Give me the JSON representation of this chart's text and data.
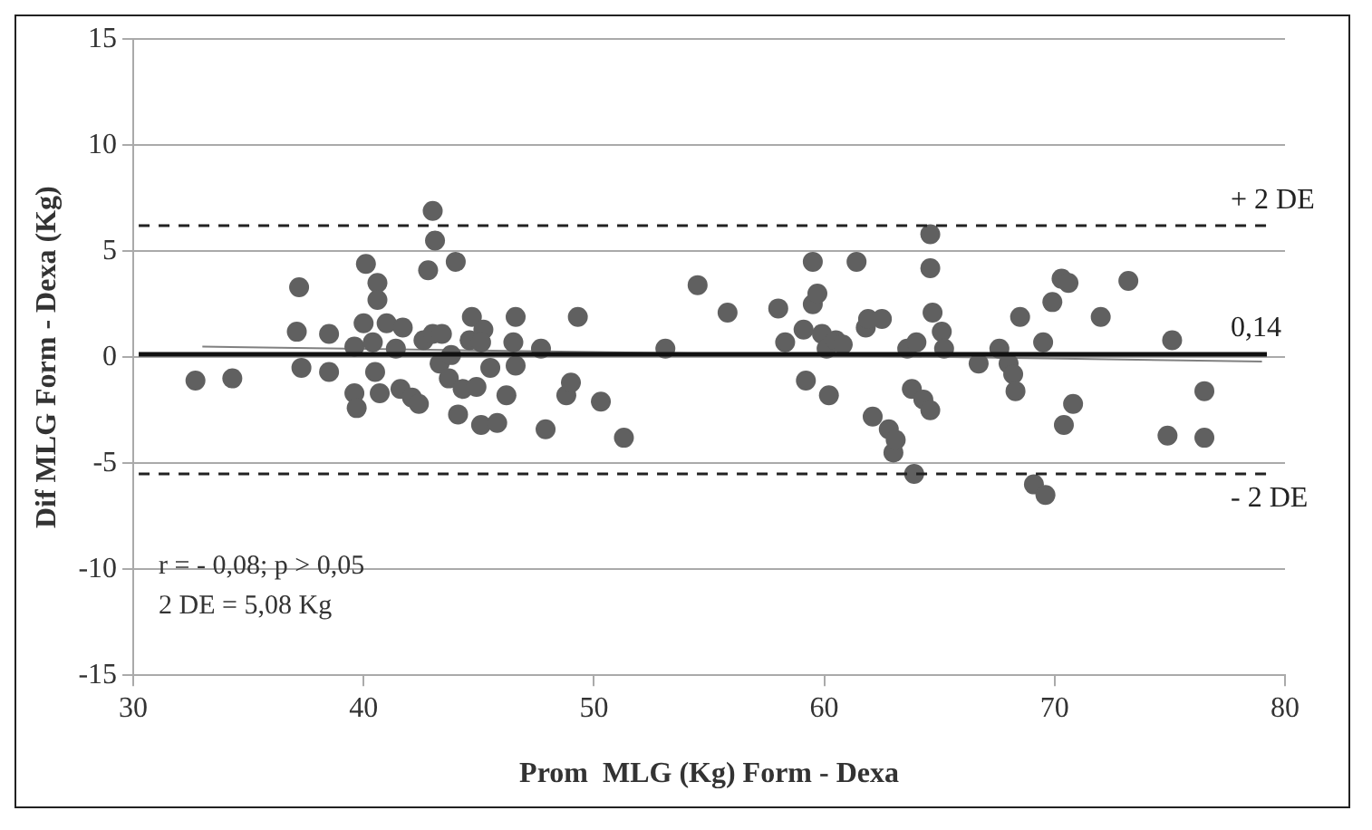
{
  "chart_data": {
    "type": "scatter",
    "xlabel": "Prom  MLG (Kg) Form - Dexa",
    "ylabel": "Dif MLG Form - Dexa (Kg)",
    "xlim": [
      30,
      80
    ],
    "xticks": [
      30,
      40,
      50,
      60,
      70,
      80
    ],
    "ylim": [
      -15,
      15
    ],
    "yticks": [
      -15,
      -10,
      -5,
      0,
      5,
      10,
      15
    ],
    "grid": "y",
    "series": [
      {
        "marker": "circle",
        "color": "#606060",
        "x": [
          32.7,
          34.3,
          37.2,
          37.1,
          37.3,
          38.5,
          38.5,
          39.6,
          39.6,
          39.7,
          40.1,
          40.6,
          40.6,
          40.0,
          40.4,
          40.5,
          40.7,
          41.0,
          41.4,
          41.6,
          41.7,
          42.1,
          42.4,
          42.6,
          42.8,
          43.0,
          43.1,
          43.0,
          43.3,
          43.4,
          43.7,
          44.0,
          43.8,
          44.1,
          44.3,
          44.6,
          44.7,
          44.9,
          45.1,
          45.2,
          45.5,
          45.1,
          45.8,
          46.2,
          46.5,
          46.6,
          46.6,
          47.7,
          47.9,
          48.8,
          49.0,
          49.3,
          50.3,
          51.3,
          53.1,
          54.5,
          55.8,
          58.0,
          58.3,
          59.1,
          59.2,
          59.5,
          59.5,
          59.7,
          59.9,
          60.1,
          60.2,
          60.5,
          60.8,
          61.4,
          61.8,
          61.9,
          62.1,
          62.5,
          62.8,
          63.0,
          63.1,
          63.6,
          63.8,
          64.0,
          63.9,
          64.3,
          64.6,
          64.6,
          64.6,
          64.7,
          65.1,
          65.2,
          66.7,
          67.6,
          68.0,
          68.2,
          68.3,
          68.5,
          69.1,
          69.6,
          69.5,
          69.9,
          70.3,
          70.6,
          70.4,
          70.8,
          72.0,
          73.2,
          74.9,
          75.1,
          76.5,
          76.5
        ],
        "values": [
          -1.1,
          -1.0,
          3.3,
          1.2,
          -0.5,
          1.1,
          -0.7,
          0.5,
          -1.7,
          -2.4,
          4.4,
          3.5,
          2.7,
          1.6,
          0.7,
          -0.7,
          -1.7,
          1.6,
          0.4,
          -1.5,
          1.4,
          -1.9,
          -2.2,
          0.8,
          4.1,
          6.9,
          5.5,
          1.1,
          -0.3,
          1.1,
          -1.0,
          4.5,
          0.1,
          -2.7,
          -1.5,
          0.8,
          1.9,
          -1.4,
          -3.2,
          1.3,
          -0.5,
          0.7,
          -3.1,
          -1.8,
          0.7,
          1.9,
          -0.4,
          0.4,
          -3.4,
          -1.8,
          -1.2,
          1.9,
          -2.1,
          -3.8,
          0.4,
          3.4,
          2.1,
          2.3,
          0.7,
          1.3,
          -1.1,
          4.5,
          2.5,
          3.0,
          1.1,
          0.4,
          -1.8,
          0.8,
          0.6,
          4.5,
          1.4,
          1.8,
          -2.8,
          1.8,
          -3.4,
          -4.5,
          -3.9,
          0.4,
          -1.5,
          0.7,
          -5.5,
          -2.0,
          -2.5,
          5.8,
          4.2,
          2.1,
          1.2,
          0.4,
          -0.3,
          0.4,
          -0.3,
          -0.8,
          -1.6,
          1.9,
          -6.0,
          -6.5,
          0.7,
          2.6,
          3.7,
          3.5,
          -3.2,
          -2.2,
          1.9,
          3.6,
          -3.7,
          0.8,
          -1.6,
          -3.8
        ]
      },
      {
        "type": "line",
        "color": "#808080",
        "x": [
          33,
          79
        ],
        "values": [
          0.5,
          -0.2
        ]
      }
    ],
    "ref_lines": [
      {
        "axis": "y",
        "value": 6.2,
        "label": "+ 2 DE",
        "color": "#222222",
        "line_style": "dashed"
      },
      {
        "axis": "y",
        "value": 0.14,
        "label": "0,14",
        "color": "#111111",
        "line_style": "solid"
      },
      {
        "axis": "y",
        "value": -5.5,
        "label": "- 2 DE",
        "color": "#222222",
        "line_style": "dashed"
      }
    ],
    "annotations": [
      "r = - 0,08; p > 0,05",
      "2 DE = 5,08 Kg"
    ]
  }
}
